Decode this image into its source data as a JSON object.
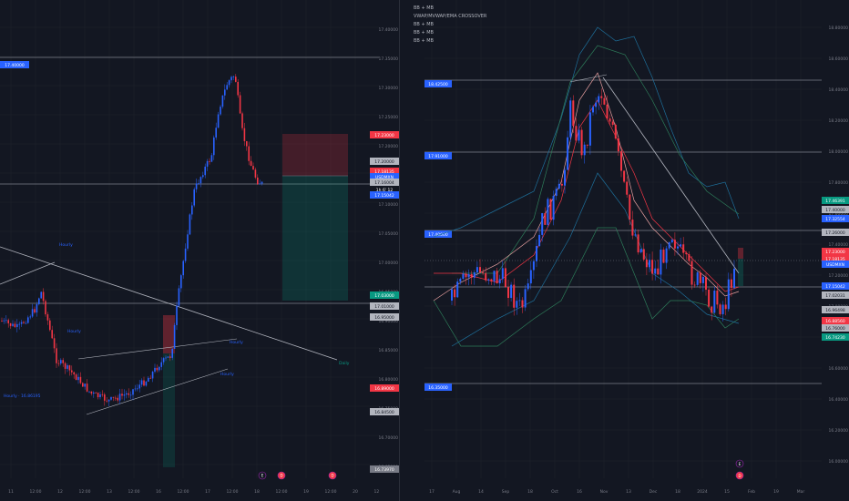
{
  "left_chart": {
    "hline_label": "17.40000",
    "x_ticks": [
      "11",
      "12:00",
      "12",
      "12:00",
      "13",
      "12:00",
      "16",
      "12:00",
      "17",
      "12:00",
      "18",
      "12:00",
      "19",
      "12:00",
      "20",
      "12:00"
    ],
    "y_ticks": [
      "17.40000",
      "17.35000",
      "17.30000",
      "17.25000",
      "17.20000",
      "17.15000",
      "17.10000",
      "17.05000",
      "17.00000",
      "16.95000",
      "16.90000",
      "16.85000",
      "16.80000",
      "16.75000",
      "16.70000",
      "16.65000"
    ],
    "annotations": [
      "Hourly",
      "Hourly",
      "Hourly",
      "Hourly",
      "Daily",
      "Hourly · 16.86195"
    ],
    "price_tags": [
      {
        "text": "17.23000",
        "color": "#f23645"
      },
      {
        "text": "17.20000",
        "color": "#b2b5be"
      },
      {
        "text": "17.18135",
        "color": "#f23645"
      },
      {
        "text": "USDMXN",
        "color": "#2962ff"
      },
      {
        "text": "17.16004",
        "color": "#b2b5be"
      },
      {
        "text": "1h 6' 12",
        "color": "#131722"
      },
      {
        "text": "17.15042",
        "color": "#2962ff"
      },
      {
        "text": "17.03000",
        "color": "#089981"
      },
      {
        "text": "17.01000",
        "color": "#b2b5be"
      },
      {
        "text": "16.95000",
        "color": "#b2b5be"
      },
      {
        "text": "16.89000",
        "color": "#f23645"
      },
      {
        "text": "16.84500",
        "color": "#b2b5be"
      },
      {
        "text": "16.73970",
        "color": "#787b86"
      }
    ],
    "event_icons": [
      "E",
      "D",
      "D"
    ]
  },
  "right_chart": {
    "hline_labels": [
      "18.42500",
      "17.91000",
      "17.40000",
      "16.35000"
    ],
    "top_label": "MXN",
    "legend": [
      "BB + MB",
      "VWAP/MVWAP/EMA CROSSOVER",
      "BB + MB",
      "BB + MB",
      "BB + MB"
    ],
    "x_ticks": [
      "17",
      "Aug",
      "14",
      "Sep",
      "18",
      "Oct",
      "16",
      "Nov",
      "13",
      "Dec",
      "18",
      "2024",
      "15",
      "Feb",
      "19",
      "Mar"
    ],
    "y_ticks": [
      "18.80000",
      "18.60000",
      "18.40000",
      "18.20000",
      "18.00000",
      "17.80000",
      "17.60000",
      "17.40000",
      "17.20000",
      "17.00000",
      "16.80000",
      "16.60000",
      "16.40000",
      "16.20000",
      "16.00000"
    ],
    "price_tags": [
      {
        "text": "17.46391",
        "color": "#089981"
      },
      {
        "text": "17.40000",
        "color": "#b2b5be"
      },
      {
        "text": "17.32554",
        "color": "#2962ff"
      },
      {
        "text": "17.26000",
        "color": "#b2b5be"
      },
      {
        "text": "17.23000",
        "color": "#f23645"
      },
      {
        "text": "17.18135",
        "color": "#f23645"
      },
      {
        "text": "USDMXN",
        "color": "#2962ff"
      },
      {
        "text": "17.15042",
        "color": "#2962ff"
      },
      {
        "text": "17.02031",
        "color": "#b2b5be"
      },
      {
        "text": "16.96498",
        "color": "#b2b5be"
      },
      {
        "text": "16.88560",
        "color": "#f23645"
      },
      {
        "text": "16.76000",
        "color": "#b2b5be"
      },
      {
        "text": "16.74230",
        "color": "#089981"
      }
    ],
    "event_icons": [
      "E",
      "D"
    ]
  }
}
